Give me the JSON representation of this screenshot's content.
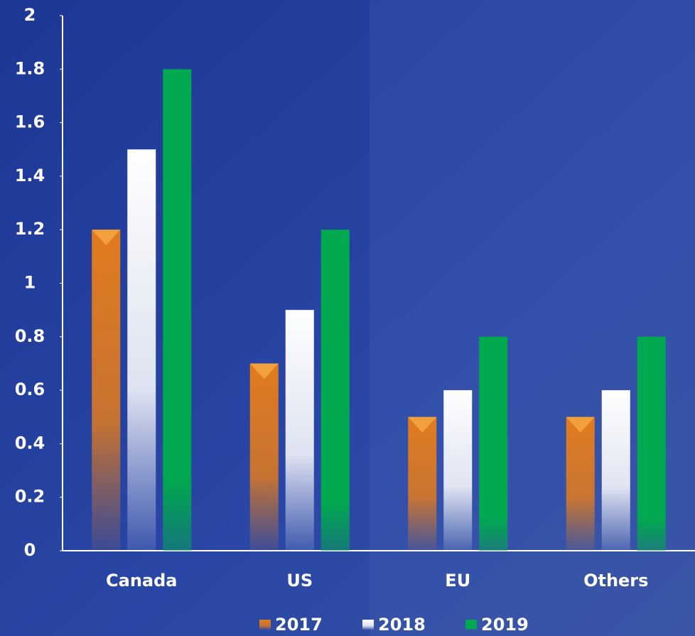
{
  "chart_data": {
    "type": "bar",
    "categories": [
      "Canada",
      "US",
      "EU",
      "Others"
    ],
    "series": [
      {
        "name": "2017",
        "color": "#e27b1e",
        "values": [
          1.2,
          0.7,
          0.5,
          0.5
        ]
      },
      {
        "name": "2018",
        "color": "#ffffff",
        "values": [
          1.5,
          0.9,
          0.6,
          0.6
        ]
      },
      {
        "name": "2019",
        "color": "#00a84f",
        "values": [
          1.8,
          1.2,
          0.8,
          0.8
        ]
      }
    ],
    "ylim": [
      0,
      2
    ],
    "yticks": [
      0,
      0.2,
      0.4,
      0.6,
      0.8,
      1,
      1.2,
      1.4,
      1.6,
      1.8,
      2
    ],
    "legend": "bottom"
  }
}
